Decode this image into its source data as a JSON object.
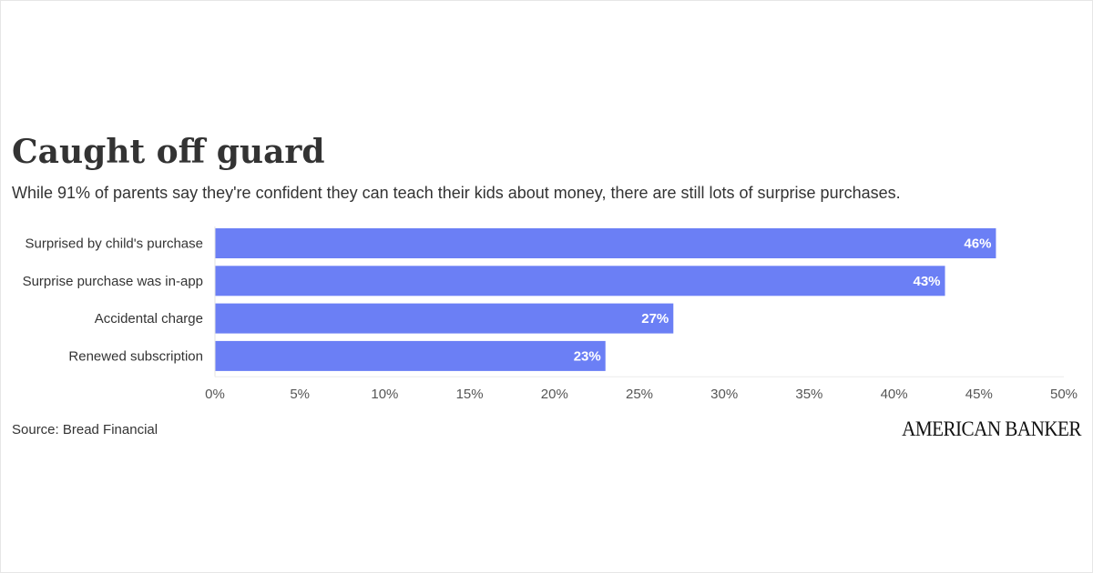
{
  "header": {
    "title": "Caught off guard",
    "subtitle": "While 91% of parents say they're confident they can teach their kids about money, there are still lots of surprise purchases."
  },
  "chart_data": {
    "type": "bar",
    "orientation": "horizontal",
    "categories": [
      "Surprised by child's purchase",
      "Surprise purchase was in-app",
      "Accidental charge",
      "Renewed subscription"
    ],
    "values": [
      46,
      43,
      27,
      23
    ],
    "data_labels": [
      "46%",
      "43%",
      "27%",
      "23%"
    ],
    "xlim": [
      0,
      50
    ],
    "x_ticks": [
      0,
      5,
      10,
      15,
      20,
      25,
      30,
      35,
      40,
      45,
      50
    ],
    "x_tick_labels": [
      "0%",
      "5%",
      "10%",
      "15%",
      "20%",
      "25%",
      "30%",
      "35%",
      "40%",
      "45%",
      "50%"
    ],
    "bar_color": "#6B7FF5",
    "grid": false,
    "legend": "none"
  },
  "footer": {
    "source": "Source: Bread Financial",
    "logo_text": "AMERICAN BANKER"
  }
}
